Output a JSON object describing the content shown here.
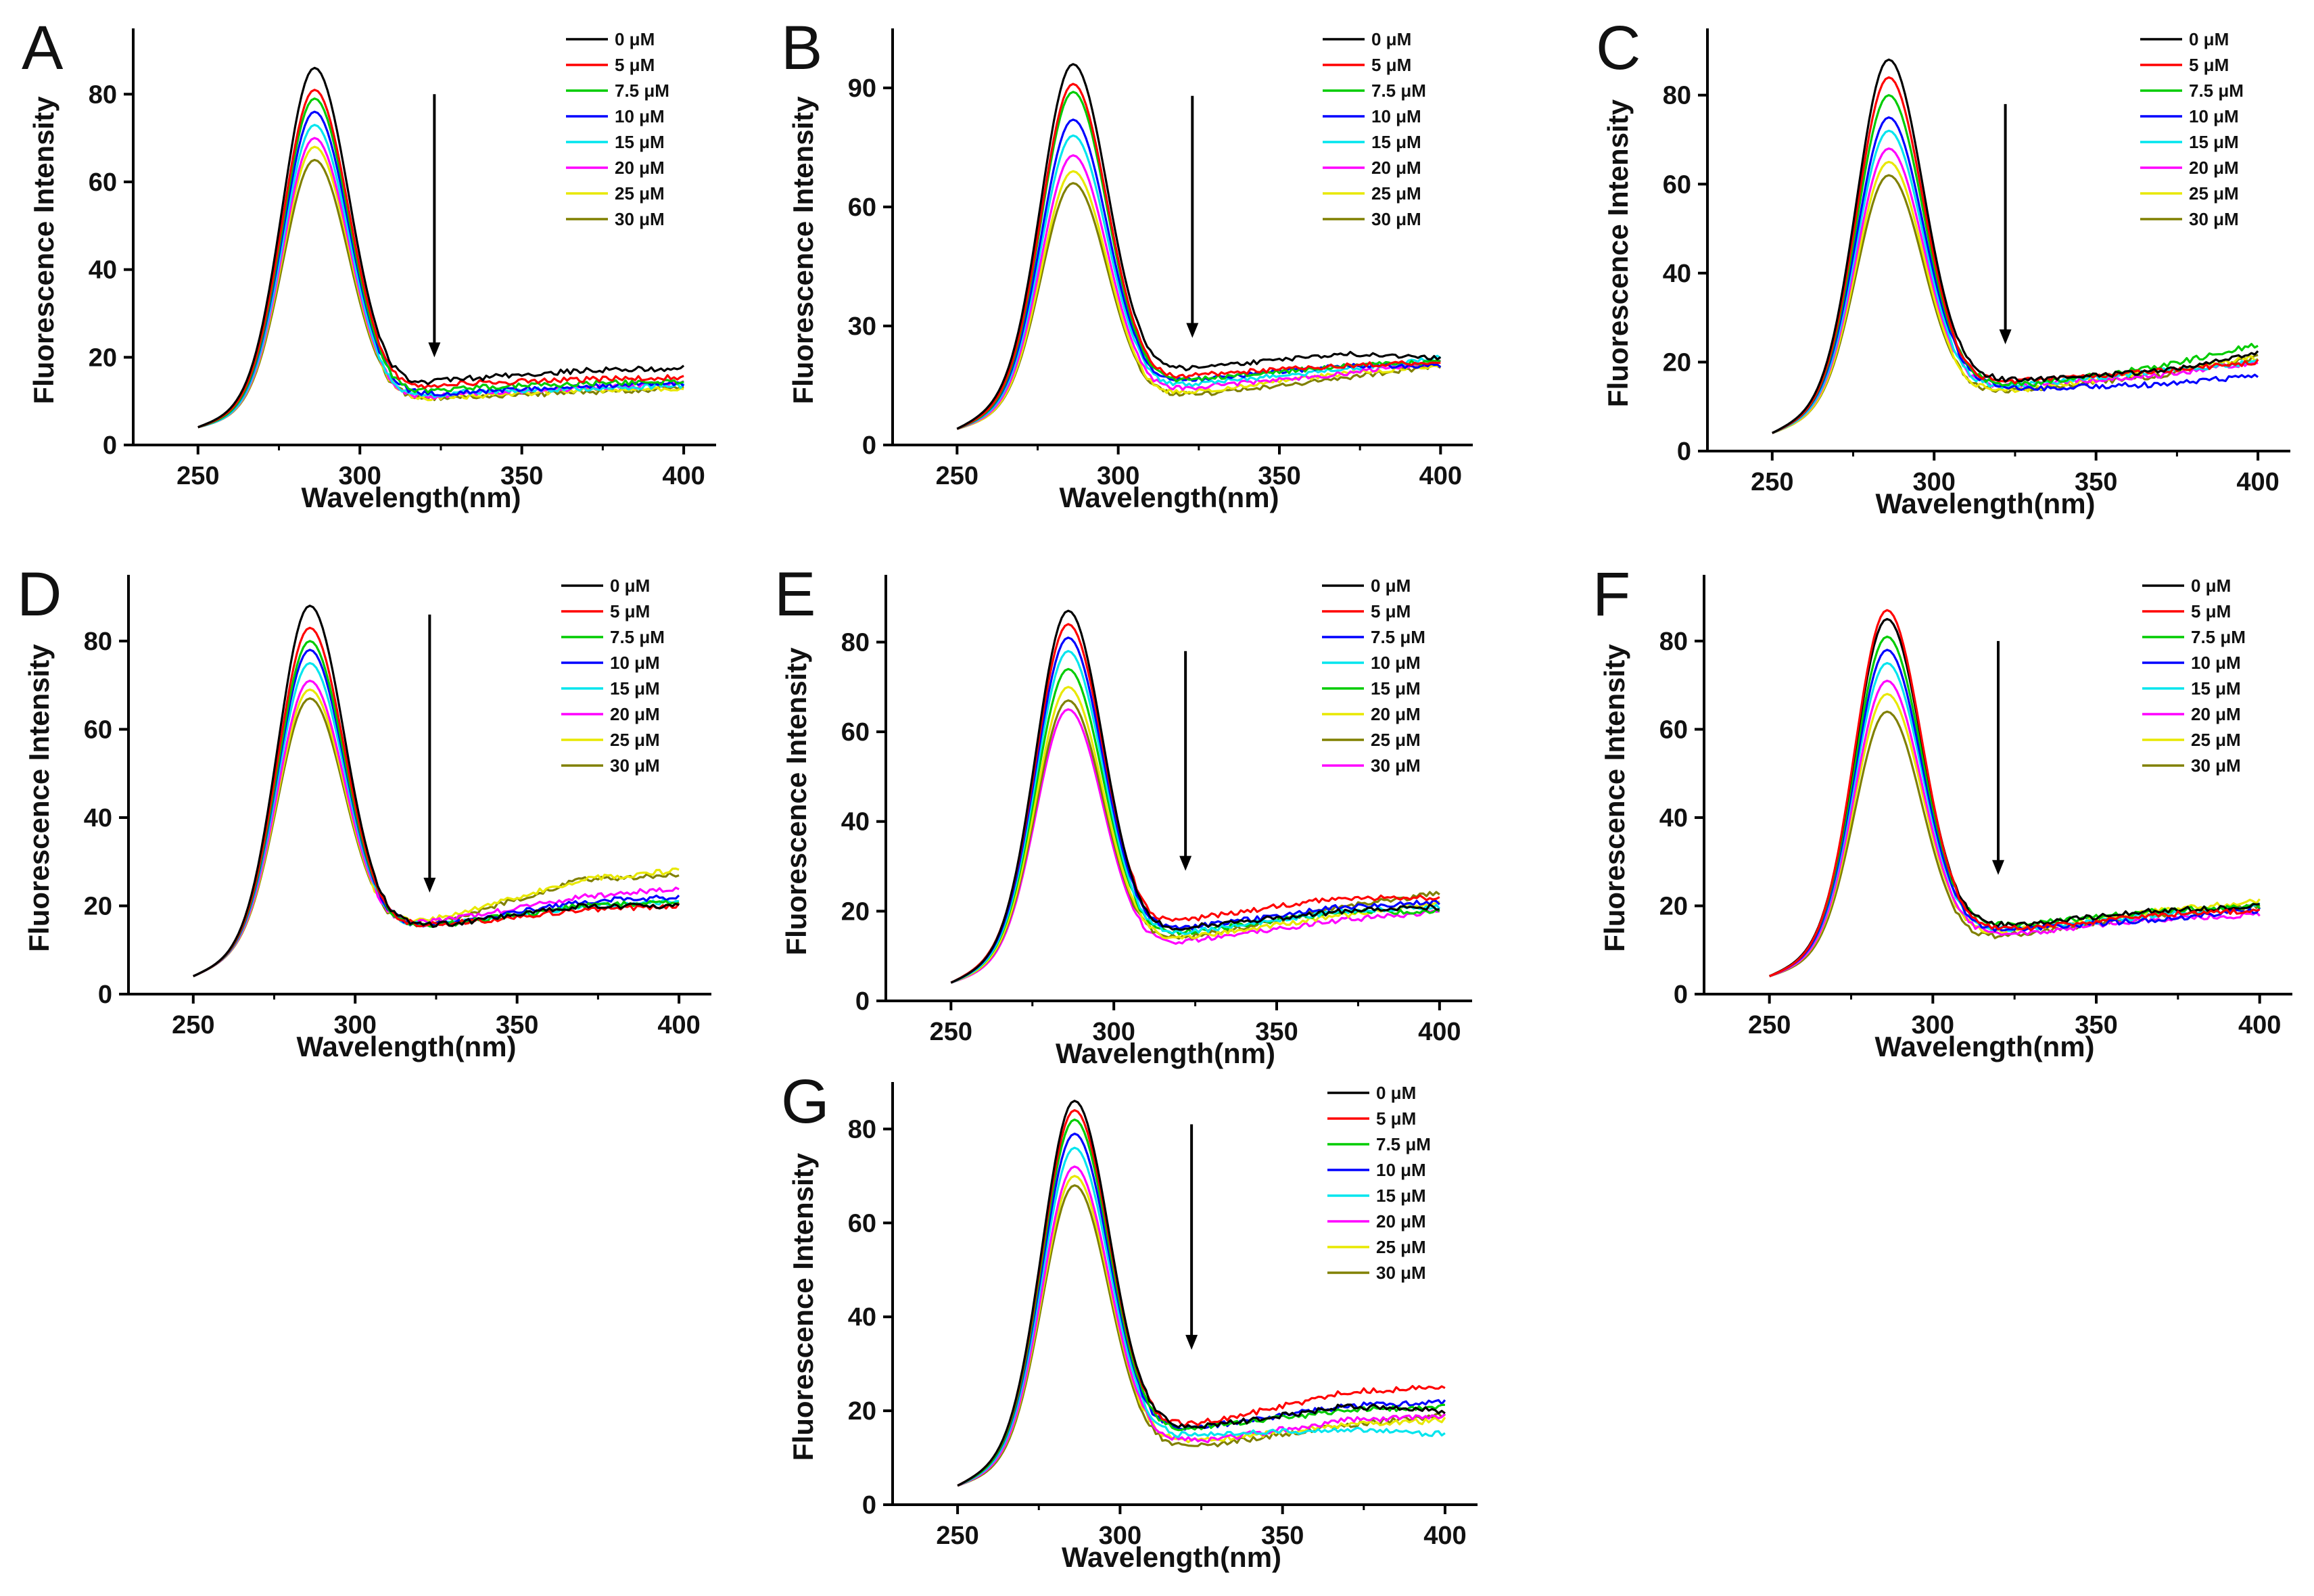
{
  "chart_data": [
    {
      "panel": "A",
      "type": "line",
      "xlabel": "Wavelength(nm)",
      "ylabel": "Fluorescence Intensity",
      "xlim": [
        230,
        410
      ],
      "ylim": [
        0,
        95
      ],
      "xticks": [
        250,
        300,
        350,
        400
      ],
      "yticks": [
        0,
        20,
        40,
        60,
        80
      ],
      "arrow": {
        "x": 323,
        "y_from": 80,
        "y_to": 20
      },
      "series": [
        {
          "name": "0 μM",
          "color": "#000000",
          "peak": 86,
          "tail": [
            13,
            15,
            17,
            17.5
          ]
        },
        {
          "name": "5 μM",
          "color": "#ff0000",
          "peak": 81,
          "tail": [
            12,
            14,
            15,
            15.5
          ]
        },
        {
          "name": "7.5 μM",
          "color": "#00cc00",
          "peak": 79,
          "tail": [
            11,
            13,
            14,
            14.5
          ]
        },
        {
          "name": "10 μM",
          "color": "#0000ff",
          "peak": 76,
          "tail": [
            11,
            12,
            13.5,
            14
          ]
        },
        {
          "name": "15 μM",
          "color": "#00e5ee",
          "peak": 73,
          "tail": [
            10,
            12,
            13,
            13.5
          ]
        },
        {
          "name": "20 μM",
          "color": "#ff00ff",
          "peak": 70,
          "tail": [
            10,
            11.5,
            13,
            14
          ]
        },
        {
          "name": "25 μM",
          "color": "#e8e800",
          "peak": 68,
          "tail": [
            10,
            11,
            12.5,
            13
          ]
        },
        {
          "name": "30 μM",
          "color": "#808000",
          "peak": 65,
          "tail": [
            10,
            11,
            12,
            13
          ]
        }
      ]
    },
    {
      "panel": "B",
      "type": "line",
      "xlabel": "Wavelength(nm)",
      "ylabel": "Fluorescence Intensity",
      "xlim": [
        230,
        410
      ],
      "ylim": [
        0,
        105
      ],
      "xticks": [
        250,
        300,
        350,
        400
      ],
      "yticks": [
        0,
        30,
        60,
        90
      ],
      "arrow": {
        "x": 323,
        "y_from": 88,
        "y_to": 27
      },
      "series": [
        {
          "name": "0 μM",
          "color": "#000000",
          "peak": 96,
          "tail": [
            18,
            20,
            23,
            22
          ]
        },
        {
          "name": "5 μM",
          "color": "#ff0000",
          "peak": 91,
          "tail": [
            16,
            18,
            20,
            21
          ]
        },
        {
          "name": "7.5 μM",
          "color": "#00cc00",
          "peak": 89,
          "tail": [
            15,
            17,
            20,
            21
          ]
        },
        {
          "name": "10 μM",
          "color": "#0000ff",
          "peak": 82,
          "tail": [
            15,
            17,
            20,
            20
          ]
        },
        {
          "name": "15 μM",
          "color": "#00e5ee",
          "peak": 78,
          "tail": [
            14,
            16,
            19,
            22
          ]
        },
        {
          "name": "20 μM",
          "color": "#ff00ff",
          "peak": 73,
          "tail": [
            13,
            15,
            18,
            21
          ]
        },
        {
          "name": "25 μM",
          "color": "#e8e800",
          "peak": 69,
          "tail": [
            12,
            14,
            18,
            20
          ]
        },
        {
          "name": "30 μM",
          "color": "#808000",
          "peak": 66,
          "tail": [
            12,
            13,
            17,
            20
          ]
        }
      ]
    },
    {
      "panel": "C",
      "type": "line",
      "xlabel": "Wavelength(nm)",
      "ylabel": "Fluorescence Intensity",
      "xlim": [
        230,
        410
      ],
      "ylim": [
        0,
        95
      ],
      "xticks": [
        250,
        300,
        350,
        400
      ],
      "yticks": [
        0,
        20,
        40,
        60,
        80
      ],
      "arrow": {
        "x": 322,
        "y_from": 78,
        "y_to": 24
      },
      "series": [
        {
          "name": "0 μM",
          "color": "#000000",
          "peak": 88,
          "tail": [
            16,
            16,
            18,
            22
          ]
        },
        {
          "name": "5 μM",
          "color": "#ff0000",
          "peak": 84,
          "tail": [
            15,
            16,
            18,
            20
          ]
        },
        {
          "name": "7.5 μM",
          "color": "#00cc00",
          "peak": 80,
          "tail": [
            15,
            15,
            19,
            24
          ]
        },
        {
          "name": "10 μM",
          "color": "#0000ff",
          "peak": 75,
          "tail": [
            15,
            14,
            15,
            17
          ]
        },
        {
          "name": "15 μM",
          "color": "#00e5ee",
          "peak": 72,
          "tail": [
            14,
            15,
            18,
            20
          ]
        },
        {
          "name": "20 μM",
          "color": "#ff00ff",
          "peak": 68,
          "tail": [
            14,
            15,
            17,
            20
          ]
        },
        {
          "name": "25 μM",
          "color": "#e8e800",
          "peak": 65,
          "tail": [
            13,
            14,
            18,
            21
          ]
        },
        {
          "name": "30 μM",
          "color": "#808000",
          "peak": 62,
          "tail": [
            13,
            14,
            17,
            21
          ]
        }
      ]
    },
    {
      "panel": "D",
      "type": "line",
      "xlabel": "Wavelength(nm)",
      "ylabel": "Fluorescence Intensity",
      "xlim": [
        230,
        410
      ],
      "ylim": [
        0,
        95
      ],
      "xticks": [
        250,
        300,
        350,
        400
      ],
      "yticks": [
        0,
        20,
        40,
        60,
        80
      ],
      "arrow": {
        "x": 323,
        "y_from": 86,
        "y_to": 23
      },
      "series": [
        {
          "name": "0 μM",
          "color": "#000000",
          "peak": 88,
          "tail": [
            15,
            16,
            20,
            20
          ]
        },
        {
          "name": "5 μM",
          "color": "#ff0000",
          "peak": 83,
          "tail": [
            15,
            16,
            19,
            20
          ]
        },
        {
          "name": "7.5 μM",
          "color": "#00cc00",
          "peak": 80,
          "tail": [
            15,
            16,
            20,
            21
          ]
        },
        {
          "name": "10 μM",
          "color": "#0000ff",
          "peak": 78,
          "tail": [
            15,
            16,
            21,
            22
          ]
        },
        {
          "name": "15 μM",
          "color": "#00e5ee",
          "peak": 75,
          "tail": [
            15,
            16,
            20,
            21
          ]
        },
        {
          "name": "20 μM",
          "color": "#ff00ff",
          "peak": 71,
          "tail": [
            15,
            17,
            22,
            24
          ]
        },
        {
          "name": "25 μM",
          "color": "#e8e800",
          "peak": 69,
          "tail": [
            15,
            18,
            26,
            28
          ]
        },
        {
          "name": "30 μM",
          "color": "#808000",
          "peak": 67,
          "tail": [
            15,
            17,
            26,
            27
          ]
        }
      ]
    },
    {
      "panel": "E",
      "type": "line",
      "xlabel": "Wavelength(nm)",
      "ylabel": "Fluorescence Intensity",
      "xlim": [
        230,
        410
      ],
      "ylim": [
        0,
        95
      ],
      "xticks": [
        250,
        300,
        350,
        400
      ],
      "yticks": [
        0,
        20,
        40,
        60,
        80
      ],
      "arrow": {
        "x": 322,
        "y_from": 78,
        "y_to": 29
      },
      "series": [
        {
          "name": "0 μM",
          "color": "#000000",
          "peak": 87,
          "tail": [
            15,
            17,
            20,
            21
          ]
        },
        {
          "name": "5 μM",
          "color": "#ff0000",
          "peak": 84,
          "tail": [
            16,
            19,
            23,
            23
          ]
        },
        {
          "name": "7.5 μM",
          "color": "#0000ff",
          "peak": 81,
          "tail": [
            15,
            17,
            21,
            22
          ]
        },
        {
          "name": "10 μM",
          "color": "#00e5ee",
          "peak": 78,
          "tail": [
            14,
            16,
            20,
            21
          ]
        },
        {
          "name": "15 μM",
          "color": "#00cc00",
          "peak": 74,
          "tail": [
            14,
            16,
            20,
            20
          ]
        },
        {
          "name": "20 μM",
          "color": "#e8e800",
          "peak": 70,
          "tail": [
            13,
            15,
            19,
            22
          ]
        },
        {
          "name": "25 μM",
          "color": "#808000",
          "peak": 67,
          "tail": [
            13,
            15,
            21,
            24
          ]
        },
        {
          "name": "30 μM",
          "color": "#ff00ff",
          "peak": 65,
          "tail": [
            12,
            14,
            18,
            20
          ]
        }
      ]
    },
    {
      "panel": "F",
      "type": "line",
      "xlabel": "Wavelength(nm)",
      "ylabel": "Fluorescence Intensity",
      "xlim": [
        230,
        410
      ],
      "ylim": [
        0,
        95
      ],
      "xticks": [
        250,
        300,
        350,
        400
      ],
      "yticks": [
        0,
        20,
        40,
        60,
        80
      ],
      "arrow": {
        "x": 320,
        "y_from": 80,
        "y_to": 27
      },
      "series": [
        {
          "name": "0 μM",
          "color": "#000000",
          "peak": 85,
          "tail": [
            15,
            16,
            19,
            20
          ]
        },
        {
          "name": "5 μM",
          "color": "#ff0000",
          "peak": 87,
          "tail": [
            14,
            15,
            18,
            19
          ]
        },
        {
          "name": "7.5 μM",
          "color": "#00cc00",
          "peak": 81,
          "tail": [
            15,
            16,
            19,
            20
          ]
        },
        {
          "name": "10 μM",
          "color": "#0000ff",
          "peak": 78,
          "tail": [
            14,
            15,
            17,
            19
          ]
        },
        {
          "name": "15 μM",
          "color": "#00e5ee",
          "peak": 75,
          "tail": [
            14,
            15,
            18,
            20
          ]
        },
        {
          "name": "20 μM",
          "color": "#ff00ff",
          "peak": 71,
          "tail": [
            13,
            14,
            17,
            18
          ]
        },
        {
          "name": "25 μM",
          "color": "#e8e800",
          "peak": 68,
          "tail": [
            13,
            15,
            19,
            21
          ]
        },
        {
          "name": "30 μM",
          "color": "#808000",
          "peak": 64,
          "tail": [
            12,
            14,
            18,
            20
          ]
        }
      ]
    },
    {
      "panel": "G",
      "type": "line",
      "xlabel": "Wavelength(nm)",
      "ylabel": "Fluorescence Intensity",
      "xlim": [
        230,
        410
      ],
      "ylim": [
        0,
        90
      ],
      "xticks": [
        250,
        300,
        350,
        400
      ],
      "yticks": [
        0,
        20,
        40,
        60,
        80
      ],
      "arrow": {
        "x": 322,
        "y_from": 81,
        "y_to": 33
      },
      "series": [
        {
          "name": "0 μM",
          "color": "#000000",
          "peak": 86,
          "tail": [
            16,
            17,
            21,
            20
          ]
        },
        {
          "name": "5 μM",
          "color": "#ff0000",
          "peak": 84,
          "tail": [
            16,
            18,
            24,
            25
          ]
        },
        {
          "name": "7.5 μM",
          "color": "#00cc00",
          "peak": 82,
          "tail": [
            15,
            17,
            20,
            21
          ]
        },
        {
          "name": "10 μM",
          "color": "#0000ff",
          "peak": 79,
          "tail": [
            15,
            17,
            21,
            22
          ]
        },
        {
          "name": "15 μM",
          "color": "#00e5ee",
          "peak": 76,
          "tail": [
            14,
            15,
            16,
            15
          ]
        },
        {
          "name": "20 μM",
          "color": "#ff00ff",
          "peak": 72,
          "tail": [
            13,
            14,
            18,
            19
          ]
        },
        {
          "name": "25 μM",
          "color": "#e8e800",
          "peak": 70,
          "tail": [
            13,
            14,
            17,
            18
          ]
        },
        {
          "name": "30 μM",
          "color": "#808000",
          "peak": 68,
          "tail": [
            12,
            13,
            17,
            19
          ]
        }
      ]
    }
  ]
}
